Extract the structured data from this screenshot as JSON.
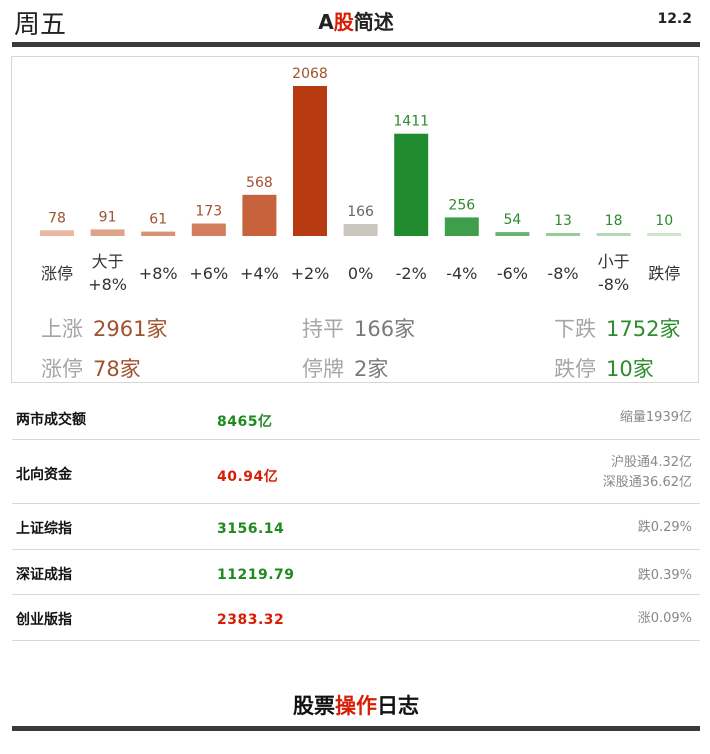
{
  "header": {
    "day": "周五",
    "title_prefix": "A",
    "title_highlight": "股",
    "title_suffix": "简述",
    "date": "12.2"
  },
  "chart_data": {
    "type": "bar",
    "categories": [
      [
        "涨停"
      ],
      [
        "大于",
        "+8%"
      ],
      [
        "+8%"
      ],
      [
        "+6%"
      ],
      [
        "+4%"
      ],
      [
        "+2%"
      ],
      [
        "0%"
      ],
      [
        "-2%"
      ],
      [
        "-4%"
      ],
      [
        "-6%"
      ],
      [
        "-8%"
      ],
      [
        "小于",
        "-8%"
      ],
      [
        "跌停"
      ]
    ],
    "values": [
      78,
      91,
      61,
      173,
      568,
      2068,
      166,
      1411,
      256,
      54,
      13,
      18,
      10
    ],
    "colors": [
      "#e8b8a0",
      "#dea489",
      "#d89274",
      "#d27d5c",
      "#c8623c",
      "#b83a10",
      "#c9c7bd",
      "#1f8a2e",
      "#3e9e4c",
      "#67b470",
      "#97cb99",
      "#b3d8b3",
      "#cfe6cd"
    ],
    "label_colors": [
      "#a0522d",
      "#a0522d",
      "#a0522d",
      "#a0522d",
      "#a0522d",
      "#a0522d",
      "#666666",
      "#2e8b2e",
      "#2e8b2e",
      "#2e8b2e",
      "#2e8b2e",
      "#2e8b2e",
      "#2e8b2e"
    ]
  },
  "stats": {
    "up_label": "上涨",
    "up_value": "2961家",
    "flat_label": "持平",
    "flat_value": "166家",
    "down_label": "下跌",
    "down_value": "1752家",
    "limit_up_label": "涨停",
    "limit_up_value": "78家",
    "suspended_label": "停牌",
    "suspended_value": "2家",
    "limit_down_label": "跌停",
    "limit_down_value": "10家"
  },
  "table": {
    "rows": [
      {
        "name": "两市成交额",
        "value": "8465亿",
        "note1": "缩量1939亿",
        "note2": ""
      },
      {
        "name": "北向资金",
        "value": "40.94亿",
        "note1": "沪股通4.32亿",
        "note2": "深股通36.62亿"
      },
      {
        "name": "上证综指",
        "value": "3156.14",
        "note1": "跌0.29%",
        "note2": ""
      },
      {
        "name": "深证成指",
        "value": "11219.79",
        "note1": "跌0.39%",
        "note2": ""
      },
      {
        "name": "创业版指",
        "value": "2383.32",
        "note1": "涨0.09%",
        "note2": ""
      }
    ]
  },
  "footer": {
    "prefix": "股票",
    "highlight": "操作",
    "suffix": "日志"
  },
  "colors": {
    "accent_red": "#d81e06",
    "up_brown": "#a0522d",
    "down_green": "#2e8b2e",
    "rule": "#3a3a3a"
  }
}
